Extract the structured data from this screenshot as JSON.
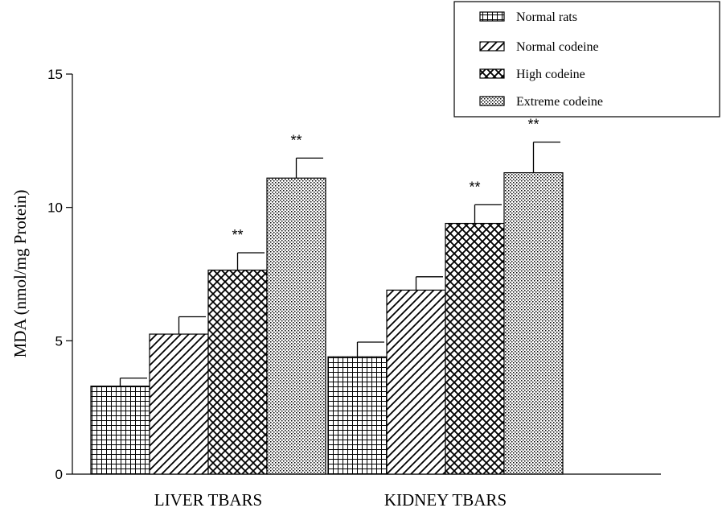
{
  "chart_data": {
    "type": "bar",
    "title": "",
    "xlabel": "",
    "ylabel": "MDA (nmol/mg Protein)",
    "ylim": [
      0,
      15
    ],
    "yticks": [
      0,
      5,
      10,
      15
    ],
    "grid": false,
    "legend_position": "top-right",
    "categories": [
      "LIVER TBARS",
      "KIDNEY TBARS"
    ],
    "series": [
      {
        "name": "Normal rats",
        "pattern": "grid",
        "values": [
          3.3,
          4.4
        ],
        "errors": [
          0.3,
          0.55
        ],
        "annotations": [
          "",
          ""
        ]
      },
      {
        "name": "Normal codeine",
        "pattern": "diagonal",
        "values": [
          5.25,
          6.9
        ],
        "errors": [
          0.65,
          0.5
        ],
        "annotations": [
          "",
          ""
        ]
      },
      {
        "name": "High codeine",
        "pattern": "crosshatch",
        "values": [
          7.65,
          9.4
        ],
        "errors": [
          0.65,
          0.7
        ],
        "annotations": [
          "**",
          "**"
        ]
      },
      {
        "name": "Extreme codeine",
        "pattern": "dots",
        "values": [
          11.1,
          11.3
        ],
        "errors": [
          0.75,
          1.15
        ],
        "annotations": [
          "**",
          "**"
        ]
      }
    ]
  }
}
